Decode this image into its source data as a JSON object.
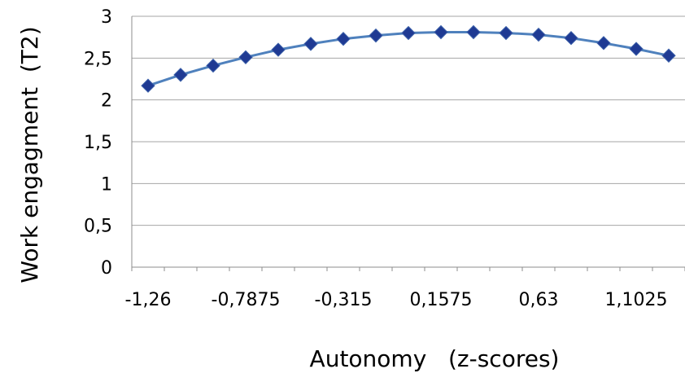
{
  "chart_data": {
    "type": "line",
    "xlabel": "Autonomy   (z-scores)",
    "ylabel": "Work engagment  (T2)",
    "ylim": [
      0,
      3
    ],
    "y_ticks": [
      "0",
      "0,5",
      "1",
      "1,5",
      "2",
      "2,5",
      "3"
    ],
    "x_tick_labels": [
      "-1,26",
      "-0,7875",
      "-0,315",
      "0,1575",
      "0,63",
      "1,1025"
    ],
    "grid": "horizontal",
    "legend": "none",
    "line_color": "#4f81bd",
    "marker_color": "#1f3a93",
    "marker": "diamond",
    "series": [
      {
        "x": [
          -1.26,
          -1.1025,
          -0.945,
          -0.7875,
          -0.63,
          -0.4725,
          -0.315,
          -0.1575,
          0,
          0.1575,
          0.315,
          0.4725,
          0.63,
          0.7875,
          0.945,
          1.1025,
          1.26
        ],
        "values": [
          2.17,
          2.3,
          2.41,
          2.51,
          2.6,
          2.67,
          2.73,
          2.77,
          2.8,
          2.81,
          2.81,
          2.8,
          2.78,
          2.74,
          2.68,
          2.61,
          2.53
        ]
      }
    ]
  }
}
